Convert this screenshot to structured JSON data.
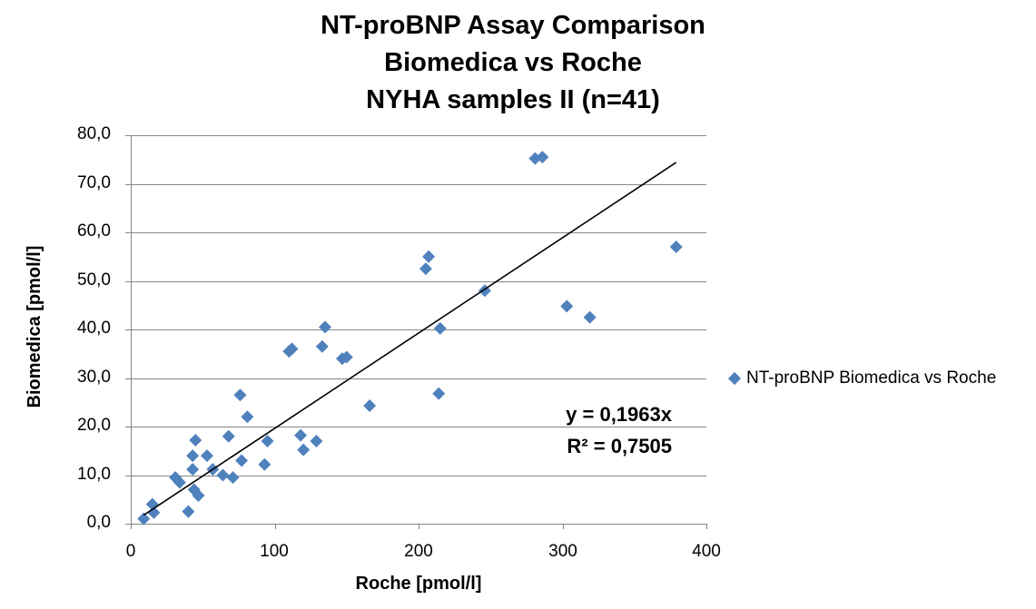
{
  "chart_data": {
    "type": "scatter",
    "title_lines": [
      "NT-proBNP Assay Comparison",
      "Biomedica vs Roche",
      "NYHA samples II (n=41)"
    ],
    "xlabel": "Roche [pmol/l]",
    "ylabel": "Biomedica [pmol/l]",
    "xlim": [
      0,
      400
    ],
    "ylim": [
      0,
      80
    ],
    "x_ticks": [
      "0",
      "100",
      "200",
      "300",
      "400"
    ],
    "y_ticks": [
      "0,0",
      "10,0",
      "20,0",
      "30,0",
      "40,0",
      "50,0",
      "60,0",
      "70,0",
      "80,0"
    ],
    "grid": "horizontal",
    "legend_position": "right",
    "series": [
      {
        "name": "NT-proBNP Biomedica vs Roche",
        "color": "#4F81BD",
        "marker": "diamond",
        "points": [
          [
            9,
            1
          ],
          [
            15,
            4
          ],
          [
            16,
            2.3
          ],
          [
            31,
            9.5
          ],
          [
            34,
            8.5
          ],
          [
            40,
            2.5
          ],
          [
            43,
            11.2
          ],
          [
            43,
            14
          ],
          [
            44,
            7
          ],
          [
            45,
            17.2
          ],
          [
            47,
            5.8
          ],
          [
            53,
            14
          ],
          [
            57,
            11.2
          ],
          [
            64,
            10
          ],
          [
            68,
            18
          ],
          [
            71,
            9.5
          ],
          [
            76,
            26.5
          ],
          [
            77,
            13
          ],
          [
            81,
            22
          ],
          [
            93,
            12.2
          ],
          [
            95,
            17
          ],
          [
            110,
            35.5
          ],
          [
            112,
            36
          ],
          [
            118,
            18.2
          ],
          [
            120,
            15.2
          ],
          [
            129,
            17
          ],
          [
            133,
            36.5
          ],
          [
            135,
            40.5
          ],
          [
            147,
            34
          ],
          [
            150,
            34.3
          ],
          [
            166,
            24.3
          ],
          [
            205,
            52.5
          ],
          [
            207,
            55
          ],
          [
            214,
            26.8
          ],
          [
            215,
            40.2
          ],
          [
            246,
            48
          ],
          [
            281,
            75.2
          ],
          [
            286,
            75.5
          ],
          [
            303,
            44.8
          ],
          [
            319,
            42.5
          ],
          [
            379,
            57
          ]
        ]
      }
    ],
    "trendline": {
      "slope": 0.1963,
      "intercept": 0,
      "x_range": [
        9,
        379
      ],
      "color": "#000000",
      "equation_label": "y = 0,1963x",
      "r2_label": "R² = 0,7505"
    }
  }
}
